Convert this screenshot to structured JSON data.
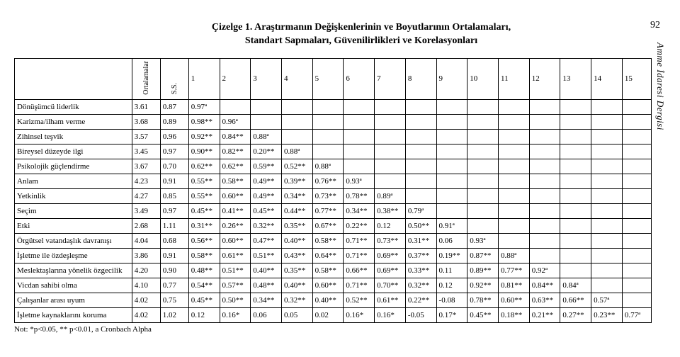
{
  "page_number": "92",
  "side_journal": "Amme İdaresi Dergisi",
  "title_line1": "Çizelge 1. Araştırmanın Değişkenlerinin ve Boyutlarının Ortalamaları,",
  "title_line2": "Standart Sapmaları, Güvenilirlikleri ve Korelasyonları",
  "col_headers": {
    "rowlabel": "",
    "ort": "Ortalamalar",
    "ss": "S.S.",
    "nums": [
      "1",
      "2",
      "3",
      "4",
      "5",
      "6",
      "7",
      "8",
      "9",
      "10",
      "11",
      "12",
      "13",
      "14",
      "15"
    ]
  },
  "rows": [
    {
      "label": "Dönüşümcü liderlik",
      "ort": "3.61",
      "ss": "0.87",
      "cells": [
        "0.97ª",
        "",
        "",
        "",
        "",
        "",
        "",
        "",
        "",
        "",
        "",
        "",
        "",
        "",
        ""
      ]
    },
    {
      "label": "Karizma/ilham verme",
      "ort": "3.68",
      "ss": "0.89",
      "cells": [
        "0.98**",
        "0.96ª",
        "",
        "",
        "",
        "",
        "",
        "",
        "",
        "",
        "",
        "",
        "",
        "",
        ""
      ]
    },
    {
      "label": "Zihinsel teşvik",
      "ort": "3.57",
      "ss": "0.96",
      "cells": [
        "0.92**",
        "0.84**",
        "0.88ª",
        "",
        "",
        "",
        "",
        "",
        "",
        "",
        "",
        "",
        "",
        "",
        ""
      ]
    },
    {
      "label": "Bireysel düzeyde ilgi",
      "ort": "3.45",
      "ss": "0.97",
      "cells": [
        "0.90**",
        "0.82**",
        "0.20**",
        "0.88ª",
        "",
        "",
        "",
        "",
        "",
        "",
        "",
        "",
        "",
        "",
        ""
      ]
    },
    {
      "label": "Psikolojik güçlendirme",
      "ort": "3.67",
      "ss": "0.70",
      "cells": [
        "0.62**",
        "0.62**",
        "0.59**",
        "0.52**",
        "0.88ª",
        "",
        "",
        "",
        "",
        "",
        "",
        "",
        "",
        "",
        ""
      ]
    },
    {
      "label": "Anlam",
      "ort": "4.23",
      "ss": "0.91",
      "cells": [
        "0.55**",
        "0.58**",
        "0.49**",
        "0.39**",
        "0.76**",
        "0.93ª",
        "",
        "",
        "",
        "",
        "",
        "",
        "",
        "",
        ""
      ]
    },
    {
      "label": "Yetkinlik",
      "ort": "4.27",
      "ss": "0.85",
      "cells": [
        "0.55**",
        "0.60**",
        "0.49**",
        "0.34**",
        "0.73**",
        "0.78**",
        "0.89ª",
        "",
        "",
        "",
        "",
        "",
        "",
        "",
        ""
      ]
    },
    {
      "label": "Seçim",
      "ort": "3.49",
      "ss": "0.97",
      "cells": [
        "0.45**",
        "0.41**",
        "0.45**",
        "0.44**",
        "0.77**",
        "0.34**",
        "0.38**",
        "0.79ª",
        "",
        "",
        "",
        "",
        "",
        "",
        ""
      ]
    },
    {
      "label": "Etki",
      "ort": "2.68",
      "ss": "1.11",
      "cells": [
        "0.31**",
        "0.26**",
        "0.32**",
        "0.35**",
        "0.67**",
        "0.22**",
        "0.12",
        "0.50**",
        "0.91ª",
        "",
        "",
        "",
        "",
        "",
        ""
      ]
    },
    {
      "label": "Örgütsel vatandaşlık davranışı",
      "ort": "4.04",
      "ss": "0.68",
      "cells": [
        "0.56**",
        "0.60**",
        "0.47**",
        "0.40**",
        "0.58**",
        "0.71**",
        "0.73**",
        "0.31**",
        "0.06",
        "0.93ª",
        "",
        "",
        "",
        "",
        ""
      ]
    },
    {
      "label": "İşletme ile özdeşleşme",
      "ort": "3.86",
      "ss": "0.91",
      "cells": [
        "0.58**",
        "0.61**",
        "0.51**",
        "0.43**",
        "0.64**",
        "0.71**",
        "0.69**",
        "0.37**",
        "0.19**",
        "0.87**",
        "0.88ª",
        "",
        "",
        "",
        ""
      ]
    },
    {
      "label": "Meslektaşlarına yönelik özgecilik",
      "ort": "4.20",
      "ss": "0.90",
      "cells": [
        "0.48**",
        "0.51**",
        "0.40**",
        "0.35**",
        "0.58**",
        "0.66**",
        "0.69**",
        "0.33**",
        "0.11",
        "0.89**",
        "0.77**",
        "0.92ª",
        "",
        "",
        ""
      ]
    },
    {
      "label": "Vicdan sahibi olma",
      "ort": "4.10",
      "ss": "0.77",
      "cells": [
        "0.54**",
        "0.57**",
        "0.48**",
        "0.40**",
        "0.60**",
        "0.71**",
        "0.70**",
        "0.32**",
        "0.12",
        "0.92**",
        "0.81**",
        "0.84**",
        "0.84ª",
        "",
        ""
      ]
    },
    {
      "label": "Çalışanlar arası uyum",
      "ort": "4.02",
      "ss": "0.75",
      "cells": [
        "0.45**",
        "0.50**",
        "0.34**",
        "0.32**",
        "0.40**",
        "0.52**",
        "0.61**",
        "0.22**",
        "-0.08",
        "0.78**",
        "0.60**",
        "0.63**",
        "0.66**",
        "0.57ª",
        ""
      ]
    },
    {
      "label": "İşletme kaynaklarını koruma",
      "ort": "4.02",
      "ss": "1.02",
      "cells": [
        "0.12",
        "0.16*",
        "0.06",
        "0.05",
        "0.02",
        "0.16*",
        "0.16*",
        "-0.05",
        "0.17*",
        "0.45**",
        "0.18**",
        "0.21**",
        "0.27**",
        "0.23**",
        "0.77ª"
      ]
    }
  ],
  "note": "Not: *p<0.05, ** p<0.01, a Cronbach Alpha"
}
